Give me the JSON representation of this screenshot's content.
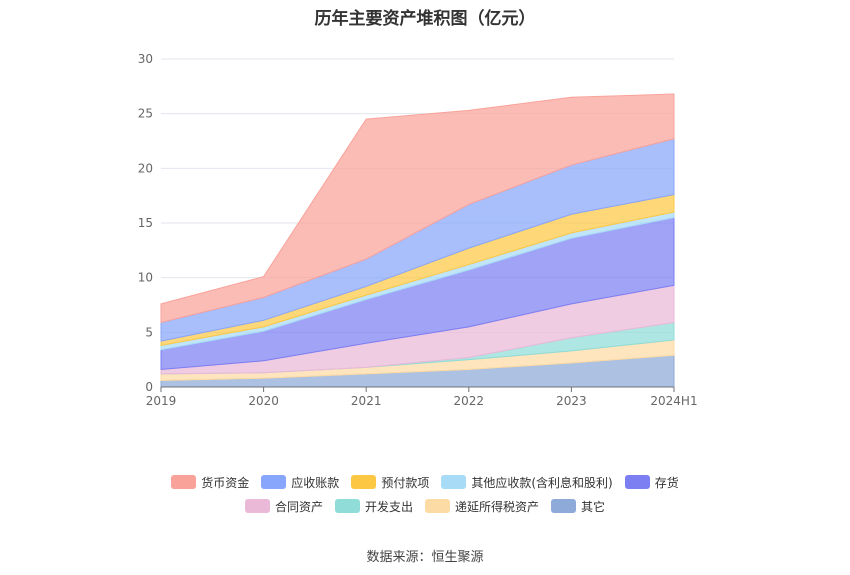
{
  "chart_data": {
    "type": "area",
    "stacked": true,
    "title": "历年主要资产堆积图（亿元）",
    "categories": [
      "2019",
      "2020",
      "2021",
      "2022",
      "2023",
      "2024H1"
    ],
    "ylim": [
      0,
      30
    ],
    "yticks": [
      0,
      5,
      10,
      15,
      20,
      25,
      30
    ],
    "grid": true,
    "legend_position": "bottom",
    "series": [
      {
        "name": "其它",
        "color": "#8eaad8",
        "values": [
          0.6,
          0.8,
          1.2,
          1.6,
          2.2,
          2.9
        ]
      },
      {
        "name": "递延所得税资产",
        "color": "#fddba4",
        "values": [
          0.6,
          0.5,
          0.6,
          0.9,
          1.1,
          1.4
        ]
      },
      {
        "name": "开发支出",
        "color": "#8fdcd8",
        "values": [
          0.0,
          0.0,
          0.0,
          0.2,
          1.2,
          1.6
        ]
      },
      {
        "name": "合同资产",
        "color": "#eab9d8",
        "values": [
          0.4,
          1.1,
          2.2,
          2.8,
          3.1,
          3.4
        ]
      },
      {
        "name": "存货",
        "color": "#7b7ff2",
        "values": [
          1.8,
          2.7,
          4.0,
          5.2,
          6.0,
          6.2
        ]
      },
      {
        "name": "其他应收款(含利息和股利)",
        "color": "#a8dbf6",
        "values": [
          0.4,
          0.4,
          0.4,
          0.5,
          0.5,
          0.5
        ]
      },
      {
        "name": "预付款项",
        "color": "#fcc844",
        "values": [
          0.4,
          0.6,
          0.8,
          1.5,
          1.7,
          1.6
        ]
      },
      {
        "name": "应收账款",
        "color": "#88a6fb",
        "values": [
          1.7,
          2.1,
          2.5,
          4.0,
          4.5,
          5.1
        ]
      },
      {
        "name": "货币资金",
        "color": "#f9a29a",
        "values": [
          1.7,
          1.9,
          12.8,
          8.6,
          6.2,
          4.1
        ]
      }
    ],
    "legend_rows": [
      [
        "货币资金",
        "应收账款",
        "预付款项",
        "其他应收款(含利息和股利)",
        "存货"
      ],
      [
        "合同资产",
        "开发支出",
        "递延所得税资产",
        "其它"
      ]
    ]
  },
  "source": "数据来源：恒生聚源"
}
